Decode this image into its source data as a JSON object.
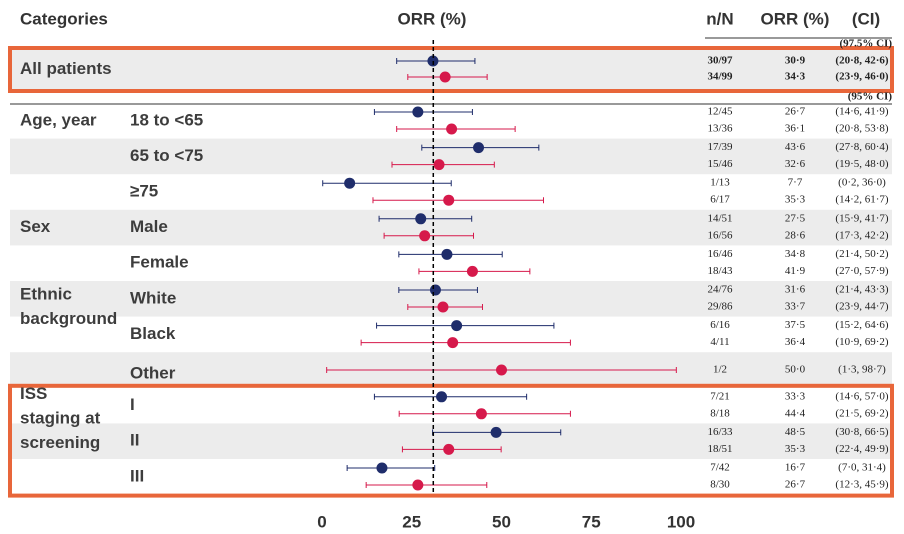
{
  "chart_data": {
    "type": "forest",
    "headers": {
      "categories": "Categories",
      "plot": "ORR (%)",
      "n_N": "n/N",
      "orr": "ORR (%)",
      "ci": "(CI)"
    },
    "xlim": [
      0,
      100
    ],
    "xticks": [
      0,
      25,
      50,
      75,
      100
    ],
    "reference_line": 31,
    "groups": [
      {
        "label": [
          "All patients"
        ],
        "ci_note": "(97.5% CI)",
        "highlight": true,
        "rows": [
          {
            "estimates": [
              {
                "color": "#1f2d6b",
                "n_N": "30/97",
                "value": 30.9,
                "value_label": "30·9",
                "ci": [
                  20.8,
                  42.6
                ],
                "ci_label": "(20·8, 42·6)"
              },
              {
                "color": "#d6194b",
                "n_N": "34/99",
                "value": 34.3,
                "value_label": "34·3",
                "ci": [
                  23.9,
                  46.0
                ],
                "ci_label": "(23·9, 46·0)"
              }
            ]
          }
        ]
      },
      {
        "label": [
          "Age, year"
        ],
        "ci_note": "(95% CI)",
        "rows": [
          {
            "label": "18 to <65",
            "estimates": [
              {
                "color": "#1f2d6b",
                "n_N": "12/45",
                "value": 26.7,
                "value_label": "26·7",
                "ci": [
                  14.6,
                  41.9
                ],
                "ci_label": "(14·6, 41·9)"
              },
              {
                "color": "#d6194b",
                "n_N": "13/36",
                "value": 36.1,
                "value_label": "36·1",
                "ci": [
                  20.8,
                  53.8
                ],
                "ci_label": "(20·8, 53·8)"
              }
            ]
          },
          {
            "label": "65 to <75",
            "estimates": [
              {
                "color": "#1f2d6b",
                "n_N": "17/39",
                "value": 43.6,
                "value_label": "43·6",
                "ci": [
                  27.8,
                  60.4
                ],
                "ci_label": "(27·8, 60·4)"
              },
              {
                "color": "#d6194b",
                "n_N": "15/46",
                "value": 32.6,
                "value_label": "32·6",
                "ci": [
                  19.5,
                  48.0
                ],
                "ci_label": "(19·5, 48·0)"
              }
            ]
          },
          {
            "label": "≥75",
            "estimates": [
              {
                "color": "#1f2d6b",
                "n_N": "1/13",
                "value": 7.7,
                "value_label": "7·7",
                "ci": [
                  0.2,
                  36.0
                ],
                "ci_label": "(0·2, 36·0)"
              },
              {
                "color": "#d6194b",
                "n_N": "6/17",
                "value": 35.3,
                "value_label": "35·3",
                "ci": [
                  14.2,
                  61.7
                ],
                "ci_label": "(14·2, 61·7)"
              }
            ]
          }
        ]
      },
      {
        "label": [
          "Sex"
        ],
        "rows": [
          {
            "label": "Male",
            "estimates": [
              {
                "color": "#1f2d6b",
                "n_N": "14/51",
                "value": 27.5,
                "value_label": "27·5",
                "ci": [
                  15.9,
                  41.7
                ],
                "ci_label": "(15·9, 41·7)"
              },
              {
                "color": "#d6194b",
                "n_N": "16/56",
                "value": 28.6,
                "value_label": "28·6",
                "ci": [
                  17.3,
                  42.2
                ],
                "ci_label": "(17·3, 42·2)"
              }
            ]
          },
          {
            "label": "Female",
            "estimates": [
              {
                "color": "#1f2d6b",
                "n_N": "16/46",
                "value": 34.8,
                "value_label": "34·8",
                "ci": [
                  21.4,
                  50.2
                ],
                "ci_label": "(21·4, 50·2)"
              },
              {
                "color": "#d6194b",
                "n_N": "18/43",
                "value": 41.9,
                "value_label": "41·9",
                "ci": [
                  27.0,
                  57.9
                ],
                "ci_label": "(27·0, 57·9)"
              }
            ]
          }
        ]
      },
      {
        "label": [
          "Ethnic",
          "background"
        ],
        "rows": [
          {
            "label": "White",
            "estimates": [
              {
                "color": "#1f2d6b",
                "n_N": "24/76",
                "value": 31.6,
                "value_label": "31·6",
                "ci": [
                  21.4,
                  43.3
                ],
                "ci_label": "(21·4, 43·3)"
              },
              {
                "color": "#d6194b",
                "n_N": "29/86",
                "value": 33.7,
                "value_label": "33·7",
                "ci": [
                  23.9,
                  44.7
                ],
                "ci_label": "(23·9, 44·7)"
              }
            ]
          },
          {
            "label": "Black",
            "estimates": [
              {
                "color": "#1f2d6b",
                "n_N": "6/16",
                "value": 37.5,
                "value_label": "37·5",
                "ci": [
                  15.2,
                  64.6
                ],
                "ci_label": "(15·2, 64·6)"
              },
              {
                "color": "#d6194b",
                "n_N": "4/11",
                "value": 36.4,
                "value_label": "36·4",
                "ci": [
                  10.9,
                  69.2
                ],
                "ci_label": "(10·9, 69·2)"
              }
            ]
          },
          {
            "label": "Other",
            "estimates": [
              {
                "color": "#d6194b",
                "n_N": "1/2",
                "value": 50.0,
                "value_label": "50·0",
                "ci": [
                  1.3,
                  98.7
                ],
                "ci_label": "(1·3, 98·7)"
              }
            ]
          }
        ]
      },
      {
        "label": [
          "ISS",
          "staging at",
          "screening"
        ],
        "highlight": true,
        "rows": [
          {
            "label": "I",
            "estimates": [
              {
                "color": "#1f2d6b",
                "n_N": "7/21",
                "value": 33.3,
                "value_label": "33·3",
                "ci": [
                  14.6,
                  57.0
                ],
                "ci_label": "(14·6, 57·0)"
              },
              {
                "color": "#d6194b",
                "n_N": "8/18",
                "value": 44.4,
                "value_label": "44·4",
                "ci": [
                  21.5,
                  69.2
                ],
                "ci_label": "(21·5, 69·2)"
              }
            ]
          },
          {
            "label": "II",
            "estimates": [
              {
                "color": "#1f2d6b",
                "n_N": "16/33",
                "value": 48.5,
                "value_label": "48·5",
                "ci": [
                  30.8,
                  66.5
                ],
                "ci_label": "(30·8, 66·5)"
              },
              {
                "color": "#d6194b",
                "n_N": "18/51",
                "value": 35.3,
                "value_label": "35·3",
                "ci": [
                  22.4,
                  49.9
                ],
                "ci_label": "(22·4, 49·9)"
              }
            ]
          },
          {
            "label": "III",
            "estimates": [
              {
                "color": "#1f2d6b",
                "n_N": "7/42",
                "value": 16.7,
                "value_label": "16·7",
                "ci": [
                  7.0,
                  31.4
                ],
                "ci_label": "(7·0, 31·4)"
              },
              {
                "color": "#d6194b",
                "n_N": "8/30",
                "value": 26.7,
                "value_label": "26·7",
                "ci": [
                  12.3,
                  45.9
                ],
                "ci_label": "(12·3, 45·9)"
              }
            ]
          }
        ]
      }
    ]
  }
}
